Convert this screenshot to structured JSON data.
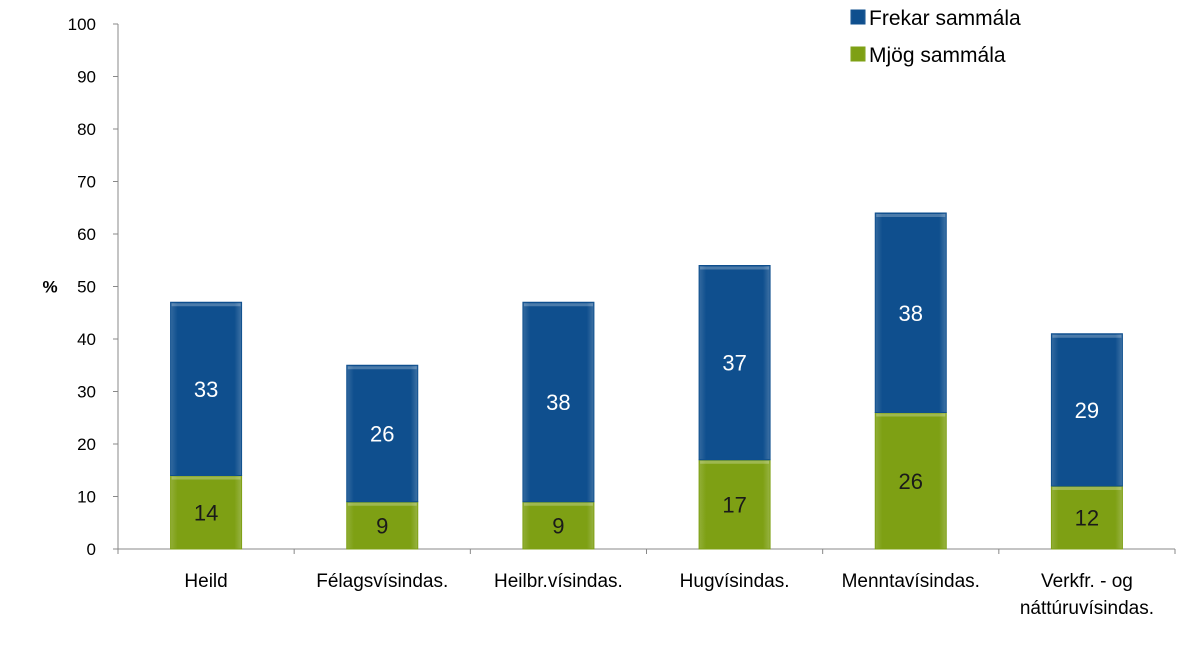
{
  "chart_data": {
    "type": "bar",
    "stacked": true,
    "title": "",
    "xlabel": "",
    "ylabel": "%",
    "ylim": [
      0,
      100
    ],
    "yticks": [
      0,
      10,
      20,
      30,
      40,
      50,
      60,
      70,
      80,
      90,
      100
    ],
    "grid": false,
    "legend_position": "top-right",
    "categories": [
      [
        "Heild"
      ],
      [
        "Félagsvísindas."
      ],
      [
        "Heilbr.vísindas."
      ],
      [
        "Hugvísindas."
      ],
      [
        "Menntavísindas."
      ],
      [
        "Verkfr. - og",
        "náttúruvísindas."
      ]
    ],
    "series": [
      {
        "name": "Mjög sammála",
        "color": "#7ea014",
        "label_color": "#1a1a1a",
        "values": [
          14,
          9,
          9,
          17,
          26,
          12
        ]
      },
      {
        "name": "Frekar sammála",
        "color": "#0f4f8e",
        "label_color": "#ffffff",
        "values": [
          33,
          26,
          38,
          37,
          38,
          29
        ]
      }
    ],
    "legend_order": [
      "Frekar sammála",
      "Mjög sammála"
    ]
  }
}
